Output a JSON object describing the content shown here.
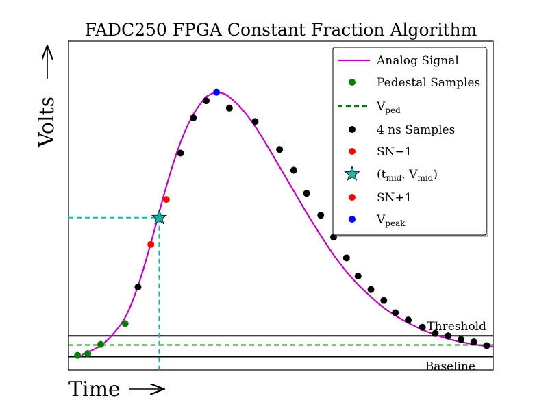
{
  "chart_data": {
    "type": "line",
    "title": "FADC250 FPGA Constant Fraction Algorithm",
    "xlabel": "Time",
    "ylabel": "Volts",
    "xlim": [
      -1.5,
      31.5
    ],
    "ylim": [
      -1.5,
      25.5
    ],
    "grid": false,
    "axis_ticks": false,
    "legend_placement": "top-right",
    "colors": {
      "analog": "#bf00bf",
      "pedestal": "#008000",
      "vped": "#008000",
      "samples": "#000000",
      "sn_minus": "#ff0000",
      "sn_plus": "#ff0000",
      "mid": "#20b2aa",
      "peak": "#0000ff",
      "guide": "#20b2aa",
      "hline": "#000000"
    },
    "legend": {
      "analog": "Analog Signal",
      "pedestal": "Pedestal Samples",
      "vped": {
        "main": "V",
        "sub": "ped"
      },
      "samples": "4 ns Samples",
      "sn_minus": "SN−1",
      "mid": {
        "open": "(t",
        "sub1": "mid",
        "mid": ", V",
        "sub2": "mid",
        "close": ")"
      },
      "sn_plus": "SN+1",
      "peak": {
        "main": "V",
        "sub": "peak"
      }
    },
    "lines": {
      "threshold_label": "Threshold",
      "baseline_label": "Baseline",
      "threshold": 1.3,
      "vped": 0.55,
      "baseline": -0.4
    },
    "pedestal_samples": {
      "x": [
        -0.8,
        0,
        1,
        2.9
      ],
      "y": [
        -0.3,
        -0.15,
        0.6,
        2.3
      ]
    },
    "samples_4ns": {
      "x": [
        3.9,
        7.2,
        8.2,
        9.2,
        11,
        13,
        14.9,
        16,
        17,
        18.1,
        19.1,
        20.1,
        21,
        22,
        23,
        23.9,
        24.9,
        26,
        27,
        28,
        29,
        30,
        31
      ],
      "y": [
        5.3,
        16.3,
        19.2,
        20.6,
        20.0,
        18.9,
        16.6,
        14.9,
        13.0,
        11.2,
        9.4,
        7.7,
        6.2,
        5.1,
        4.2,
        3.2,
        2.6,
        2.0,
        1.5,
        1.3,
        1.0,
        0.8,
        0.5
      ],
      "curve_x": [
        4.9,
        6.1,
        9.9,
        10,
        12.1
      ]
    },
    "sn_minus": {
      "x": [
        4.9
      ],
      "y": [
        8.8
      ]
    },
    "sn_plus": {
      "x": [
        6.1
      ],
      "y": [
        12.5
      ]
    },
    "t_mid_v_mid": {
      "x": [
        5.55
      ],
      "y": [
        11.0
      ]
    },
    "v_peak": {
      "x": [
        10
      ],
      "y": [
        21.3
      ]
    },
    "analog_signal": {
      "x": [
        -0.5,
        1,
        2,
        3,
        4,
        5,
        6,
        7,
        8,
        9,
        9.5,
        10,
        10.5,
        11,
        12,
        13,
        14,
        15,
        16,
        17,
        18,
        19,
        20,
        21,
        22,
        23,
        24,
        25,
        26,
        27,
        28,
        29,
        30,
        31,
        31.5
      ],
      "y": [
        -0.3,
        0.5,
        1.5,
        3.0,
        5.7,
        9.3,
        13.2,
        16.6,
        19.1,
        20.7,
        21.1,
        21.3,
        21.2,
        20.9,
        19.9,
        18.5,
        16.8,
        15.0,
        13.2,
        11.4,
        9.7,
        8.1,
        6.7,
        5.5,
        4.5,
        3.6,
        2.9,
        2.3,
        1.8,
        1.4,
        1.05,
        0.8,
        0.6,
        0.45,
        0.4
      ]
    }
  }
}
